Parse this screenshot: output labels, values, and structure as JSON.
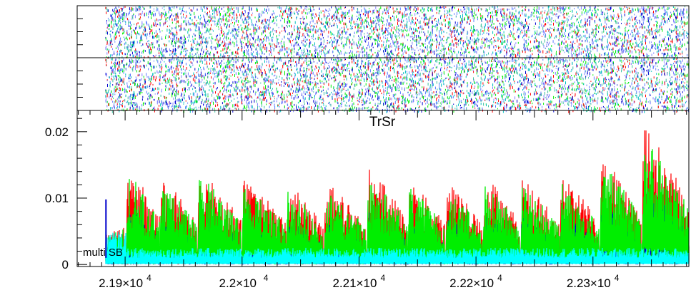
{
  "chart_data": {
    "type": "line",
    "title": "TrSr",
    "annotation": "multi SB",
    "xlabel": "",
    "ylabel": "",
    "xlim": [
      21859,
      22382
    ],
    "ylim": [
      -0.0003,
      0.0232
    ],
    "xticks": [
      {
        "value": 21900,
        "mantissa": "2.19",
        "exponent": "4"
      },
      {
        "value": 22000,
        "mantissa": "2.2",
        "exponent": "4"
      },
      {
        "value": 22100,
        "mantissa": "2.21",
        "exponent": "4"
      },
      {
        "value": 22200,
        "mantissa": "2.22",
        "exponent": "4"
      },
      {
        "value": 22300,
        "mantissa": "2.23",
        "exponent": "4"
      }
    ],
    "yticks": [
      {
        "value": 0,
        "label": "0"
      },
      {
        "value": 0.01,
        "label": "0.01"
      },
      {
        "value": 0.02,
        "label": "0.02"
      }
    ],
    "data_start_x": 21883,
    "block_starts_x": [
      21883,
      21901,
      21930,
      21962,
      22000,
      22038,
      22070,
      22107,
      22142,
      22174,
      22206,
      22238,
      22272,
      22306,
      22342,
      22382
    ],
    "block_peaks": [
      0.006,
      0.0155,
      0.0135,
      0.0145,
      0.0135,
      0.0125,
      0.0125,
      0.0145,
      0.013,
      0.0125,
      0.0135,
      0.013,
      0.0135,
      0.0165,
      0.021
    ],
    "series": [
      {
        "color": "#ff0000",
        "values_note_peak": 0.021
      },
      {
        "color": "#0000cc",
        "values_note_peak": 0.0095
      },
      {
        "color": "#00ffff",
        "values_note_peak": 0.005
      },
      {
        "color": "#00ee00",
        "values_note_peak": 0.0165
      }
    ],
    "scatter_colors": [
      "#0000cc",
      "#00bfbf",
      "#00ee00",
      "#ff0000",
      "#8080ff",
      "#40c0a0",
      "#5a7cff"
    ]
  }
}
